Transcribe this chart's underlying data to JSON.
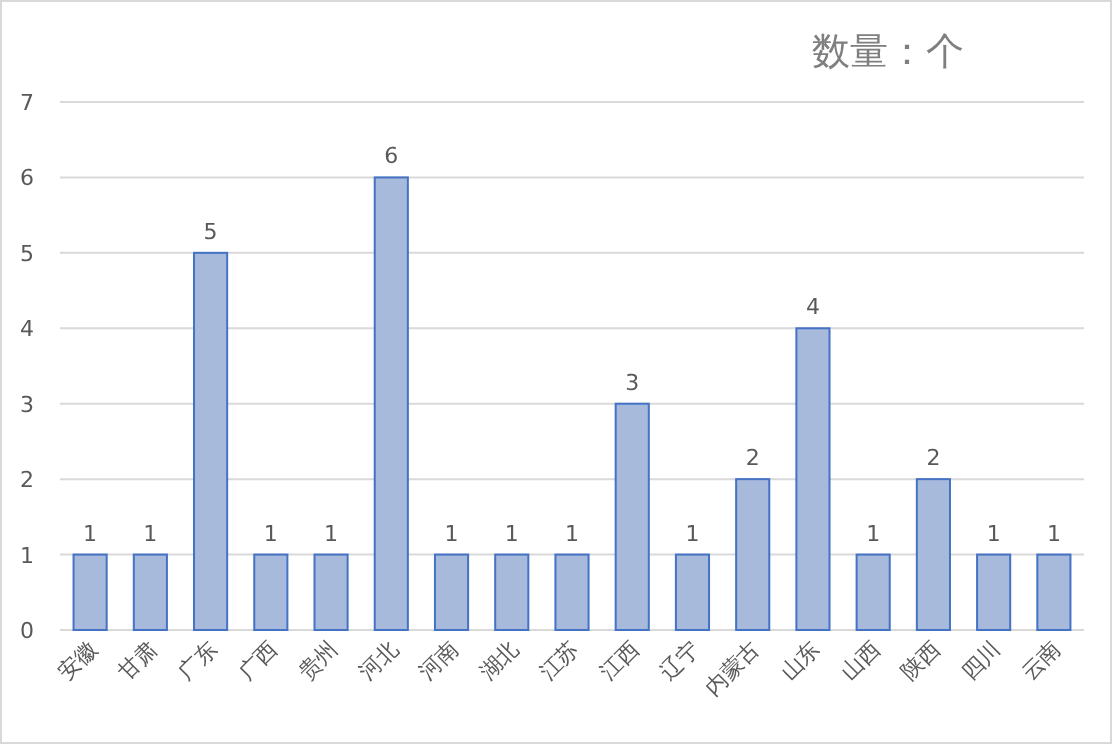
{
  "chart_data": {
    "type": "bar",
    "title": "数量：个",
    "categories": [
      "安徽",
      "甘肃",
      "广东",
      "广西",
      "贵州",
      "河北",
      "河南",
      "湖北",
      "江苏",
      "江西",
      "辽宁",
      "内蒙古",
      "山东",
      "山西",
      "陕西",
      "四川",
      "云南"
    ],
    "values": [
      1,
      1,
      5,
      1,
      1,
      6,
      1,
      1,
      1,
      3,
      1,
      2,
      4,
      1,
      2,
      1,
      1
    ],
    "color": "#a7badb",
    "ylim": [
      0,
      7
    ],
    "yticks": [
      0,
      1,
      2,
      3,
      4,
      5,
      6,
      7
    ],
    "grid": "y",
    "data_labels": true
  }
}
